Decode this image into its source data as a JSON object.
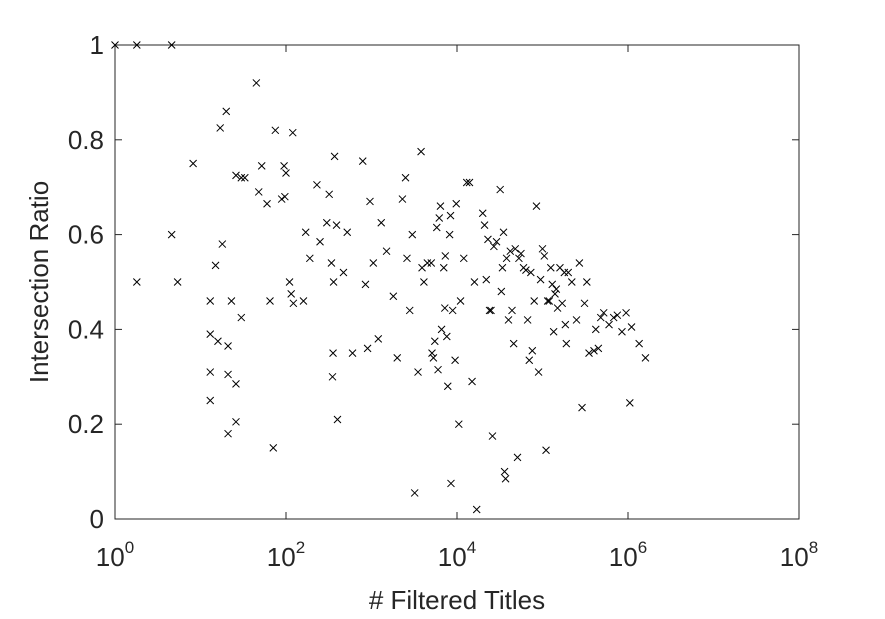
{
  "chart_data": {
    "type": "scatter",
    "xlabel": "# Filtered Titles",
    "ylabel": "Intersection Ratio",
    "x_scale": "log10",
    "xlim": [
      1,
      100000000
    ],
    "ylim": [
      0,
      1
    ],
    "grid": false,
    "marker": "x",
    "colors": {
      "axis": "#262626",
      "marker": "#000000",
      "background": "#ffffff"
    },
    "x_ticks": [
      {
        "base": "10",
        "exp": "0",
        "value": 1
      },
      {
        "base": "10",
        "exp": "2",
        "value": 100
      },
      {
        "base": "10",
        "exp": "4",
        "value": 10000
      },
      {
        "base": "10",
        "exp": "6",
        "value": 1000000
      },
      {
        "base": "10",
        "exp": "8",
        "value": 100000000
      }
    ],
    "y_ticks": [
      {
        "label": "0",
        "value": 0
      },
      {
        "label": "0.2",
        "value": 0.2
      },
      {
        "label": "0.4",
        "value": 0.4
      },
      {
        "label": "0.6",
        "value": 0.6
      },
      {
        "label": "0.8",
        "value": 0.8
      },
      {
        "label": "1",
        "value": 1
      }
    ],
    "points": [
      [
        1.0,
        1.0
      ],
      [
        1.8,
        1.0
      ],
      [
        4.6,
        1.0
      ],
      [
        4.6,
        0.6
      ],
      [
        1.8,
        0.5
      ],
      [
        5.4,
        0.5
      ],
      [
        8.2,
        0.75
      ],
      [
        13,
        0.25
      ],
      [
        13,
        0.31
      ],
      [
        13,
        0.39
      ],
      [
        13,
        0.46
      ],
      [
        15,
        0.535
      ],
      [
        16,
        0.375
      ],
      [
        17,
        0.825
      ],
      [
        18,
        0.58
      ],
      [
        20,
        0.86
      ],
      [
        21,
        0.365
      ],
      [
        21,
        0.305
      ],
      [
        21,
        0.18
      ],
      [
        23,
        0.46
      ],
      [
        26,
        0.285
      ],
      [
        26,
        0.205
      ],
      [
        26,
        0.725
      ],
      [
        30,
        0.72
      ],
      [
        30,
        0.425
      ],
      [
        33,
        0.72
      ],
      [
        45,
        0.92
      ],
      [
        48,
        0.69
      ],
      [
        52,
        0.745
      ],
      [
        60,
        0.665
      ],
      [
        65,
        0.46
      ],
      [
        71,
        0.15
      ],
      [
        75,
        0.82
      ],
      [
        89,
        0.675
      ],
      [
        95,
        0.745
      ],
      [
        97,
        0.68
      ],
      [
        100,
        0.73
      ],
      [
        110,
        0.5
      ],
      [
        115,
        0.475
      ],
      [
        120,
        0.815
      ],
      [
        122,
        0.455
      ],
      [
        160,
        0.46
      ],
      [
        170,
        0.605
      ],
      [
        190,
        0.55
      ],
      [
        230,
        0.705
      ],
      [
        250,
        0.585
      ],
      [
        300,
        0.625
      ],
      [
        320,
        0.685
      ],
      [
        340,
        0.54
      ],
      [
        350,
        0.3
      ],
      [
        355,
        0.35
      ],
      [
        360,
        0.5
      ],
      [
        370,
        0.765
      ],
      [
        390,
        0.62
      ],
      [
        400,
        0.21
      ],
      [
        470,
        0.52
      ],
      [
        520,
        0.605
      ],
      [
        600,
        0.35
      ],
      [
        790,
        0.755
      ],
      [
        850,
        0.495
      ],
      [
        900,
        0.36
      ],
      [
        960,
        0.67
      ],
      [
        1050,
        0.54
      ],
      [
        1200,
        0.38
      ],
      [
        1300,
        0.625
      ],
      [
        1500,
        0.565
      ],
      [
        1800,
        0.47
      ],
      [
        2000,
        0.34
      ],
      [
        2300,
        0.675
      ],
      [
        2500,
        0.72
      ],
      [
        2600,
        0.55
      ],
      [
        2800,
        0.44
      ],
      [
        3000,
        0.6
      ],
      [
        3200,
        0.055
      ],
      [
        3500,
        0.31
      ],
      [
        3800,
        0.775
      ],
      [
        3900,
        0.53
      ],
      [
        4100,
        0.5
      ],
      [
        4500,
        0.54
      ],
      [
        5000,
        0.54
      ],
      [
        5100,
        0.35
      ],
      [
        5300,
        0.34
      ],
      [
        5500,
        0.375
      ],
      [
        5800,
        0.615
      ],
      [
        6000,
        0.315
      ],
      [
        6200,
        0.635
      ],
      [
        6400,
        0.66
      ],
      [
        6600,
        0.4
      ],
      [
        7000,
        0.53
      ],
      [
        7200,
        0.445
      ],
      [
        7300,
        0.555
      ],
      [
        7600,
        0.385
      ],
      [
        7800,
        0.28
      ],
      [
        8200,
        0.6
      ],
      [
        8400,
        0.64
      ],
      [
        8500,
        0.075
      ],
      [
        8900,
        0.44
      ],
      [
        9500,
        0.335
      ],
      [
        9800,
        0.665
      ],
      [
        10500,
        0.2
      ],
      [
        11000,
        0.46
      ],
      [
        12000,
        0.55
      ],
      [
        13000,
        0.71
      ],
      [
        14000,
        0.71
      ],
      [
        15000,
        0.29
      ],
      [
        16000,
        0.5
      ],
      [
        17000,
        0.02
      ],
      [
        20000,
        0.645
      ],
      [
        21000,
        0.62
      ],
      [
        22000,
        0.505
      ],
      [
        23000,
        0.59
      ],
      [
        24000,
        0.44
      ],
      [
        25000,
        0.44
      ],
      [
        26000,
        0.175
      ],
      [
        27000,
        0.575
      ],
      [
        29000,
        0.585
      ],
      [
        32000,
        0.695
      ],
      [
        33000,
        0.48
      ],
      [
        34000,
        0.53
      ],
      [
        35000,
        0.605
      ],
      [
        36000,
        0.1
      ],
      [
        37000,
        0.085
      ],
      [
        38000,
        0.55
      ],
      [
        40000,
        0.42
      ],
      [
        42000,
        0.565
      ],
      [
        44000,
        0.44
      ],
      [
        46000,
        0.37
      ],
      [
        48000,
        0.57
      ],
      [
        51000,
        0.13
      ],
      [
        53000,
        0.55
      ],
      [
        56000,
        0.56
      ],
      [
        60000,
        0.53
      ],
      [
        64000,
        0.525
      ],
      [
        67000,
        0.42
      ],
      [
        70000,
        0.335
      ],
      [
        73000,
        0.52
      ],
      [
        76000,
        0.355
      ],
      [
        80000,
        0.46
      ],
      [
        85000,
        0.66
      ],
      [
        90000,
        0.31
      ],
      [
        95000,
        0.505
      ],
      [
        100000,
        0.57
      ],
      [
        105000,
        0.555
      ],
      [
        110000,
        0.145
      ],
      [
        115000,
        0.46
      ],
      [
        120000,
        0.46
      ],
      [
        125000,
        0.53
      ],
      [
        130000,
        0.495
      ],
      [
        135000,
        0.395
      ],
      [
        140000,
        0.475
      ],
      [
        145000,
        0.485
      ],
      [
        150000,
        0.445
      ],
      [
        160000,
        0.53
      ],
      [
        170000,
        0.455
      ],
      [
        180000,
        0.52
      ],
      [
        185000,
        0.41
      ],
      [
        190000,
        0.37
      ],
      [
        200000,
        0.52
      ],
      [
        220000,
        0.5
      ],
      [
        250000,
        0.42
      ],
      [
        270000,
        0.54
      ],
      [
        290000,
        0.235
      ],
      [
        310000,
        0.455
      ],
      [
        330000,
        0.5
      ],
      [
        350000,
        0.35
      ],
      [
        400000,
        0.355
      ],
      [
        420000,
        0.4
      ],
      [
        450000,
        0.36
      ],
      [
        480000,
        0.425
      ],
      [
        520000,
        0.435
      ],
      [
        600000,
        0.41
      ],
      [
        680000,
        0.425
      ],
      [
        750000,
        0.43
      ],
      [
        850000,
        0.395
      ],
      [
        950000,
        0.435
      ],
      [
        1050000,
        0.245
      ],
      [
        1100000,
        0.405
      ],
      [
        1350000,
        0.37
      ],
      [
        1600000,
        0.34
      ]
    ]
  }
}
